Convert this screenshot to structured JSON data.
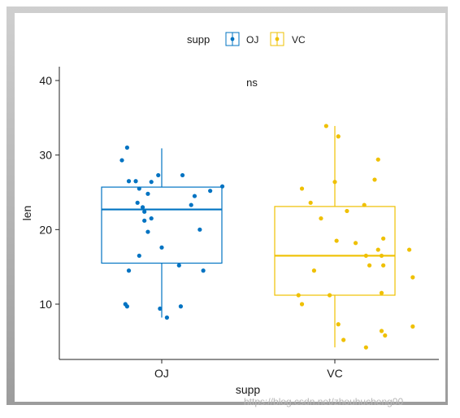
{
  "chart_data": {
    "type": "boxplot",
    "xlabel": "supp",
    "ylabel": "len",
    "ylim": [
      1.9,
      42
    ],
    "yticks": [
      10,
      20,
      30,
      40
    ],
    "grid": false,
    "legend": {
      "title": "supp",
      "placement": "top",
      "entries": [
        "OJ",
        "VC"
      ]
    },
    "annotation": "ns",
    "categories": [
      "OJ",
      "VC"
    ],
    "series": [
      {
        "name": "OJ",
        "color": "#0073C2",
        "box": {
          "q1": 15.5,
          "median": 22.7,
          "q3": 25.7,
          "whisker_low": 8.2,
          "whisker_high": 30.9
        },
        "points": [
          {
            "x": 0.8,
            "y": 31.0
          },
          {
            "x": 0.77,
            "y": 29.3
          },
          {
            "x": 0.98,
            "y": 27.3
          },
          {
            "x": 0.85,
            "y": 26.5
          },
          {
            "x": 0.81,
            "y": 26.5
          },
          {
            "x": 0.94,
            "y": 26.4
          },
          {
            "x": 1.12,
            "y": 27.3
          },
          {
            "x": 1.35,
            "y": 25.8
          },
          {
            "x": 1.28,
            "y": 25.2
          },
          {
            "x": 0.87,
            "y": 25.5
          },
          {
            "x": 0.92,
            "y": 24.8
          },
          {
            "x": 1.19,
            "y": 24.5
          },
          {
            "x": 0.86,
            "y": 23.6
          },
          {
            "x": 0.89,
            "y": 23.0
          },
          {
            "x": 1.17,
            "y": 23.3
          },
          {
            "x": 0.9,
            "y": 22.4
          },
          {
            "x": 0.94,
            "y": 21.5
          },
          {
            "x": 0.9,
            "y": 21.2
          },
          {
            "x": 1.22,
            "y": 20.0
          },
          {
            "x": 0.92,
            "y": 19.7
          },
          {
            "x": 1.0,
            "y": 17.6
          },
          {
            "x": 0.87,
            "y": 16.5
          },
          {
            "x": 1.1,
            "y": 15.2
          },
          {
            "x": 0.81,
            "y": 14.5
          },
          {
            "x": 1.24,
            "y": 14.5
          },
          {
            "x": 0.79,
            "y": 10.0
          },
          {
            "x": 0.8,
            "y": 9.7
          },
          {
            "x": 1.11,
            "y": 9.7
          },
          {
            "x": 0.99,
            "y": 9.4
          },
          {
            "x": 1.03,
            "y": 8.2
          }
        ]
      },
      {
        "name": "VC",
        "color": "#EFC000",
        "box": {
          "q1": 11.2,
          "median": 16.5,
          "q3": 23.1,
          "whisker_low": 4.2,
          "whisker_high": 33.9
        },
        "points": [
          {
            "x": 1.95,
            "y": 33.9
          },
          {
            "x": 2.02,
            "y": 32.5
          },
          {
            "x": 2.25,
            "y": 29.4
          },
          {
            "x": 2.23,
            "y": 26.7
          },
          {
            "x": 2.0,
            "y": 26.4
          },
          {
            "x": 1.81,
            "y": 25.5
          },
          {
            "x": 1.86,
            "y": 23.6
          },
          {
            "x": 2.17,
            "y": 23.3
          },
          {
            "x": 2.07,
            "y": 22.5
          },
          {
            "x": 1.92,
            "y": 21.5
          },
          {
            "x": 2.01,
            "y": 18.5
          },
          {
            "x": 2.28,
            "y": 18.8
          },
          {
            "x": 2.12,
            "y": 18.2
          },
          {
            "x": 2.25,
            "y": 17.3
          },
          {
            "x": 2.43,
            "y": 17.3
          },
          {
            "x": 2.27,
            "y": 16.5
          },
          {
            "x": 2.18,
            "y": 16.5
          },
          {
            "x": 2.2,
            "y": 15.2
          },
          {
            "x": 2.28,
            "y": 15.2
          },
          {
            "x": 1.88,
            "y": 14.5
          },
          {
            "x": 2.45,
            "y": 13.6
          },
          {
            "x": 1.79,
            "y": 11.2
          },
          {
            "x": 1.97,
            "y": 11.2
          },
          {
            "x": 2.27,
            "y": 11.5
          },
          {
            "x": 1.81,
            "y": 10.0
          },
          {
            "x": 2.02,
            "y": 7.3
          },
          {
            "x": 2.45,
            "y": 7.0
          },
          {
            "x": 2.27,
            "y": 6.4
          },
          {
            "x": 2.29,
            "y": 5.8
          },
          {
            "x": 2.05,
            "y": 5.2
          },
          {
            "x": 2.18,
            "y": 4.2
          }
        ]
      }
    ]
  },
  "watermark": "https://blog.csdn.net/zhouhucheng00"
}
